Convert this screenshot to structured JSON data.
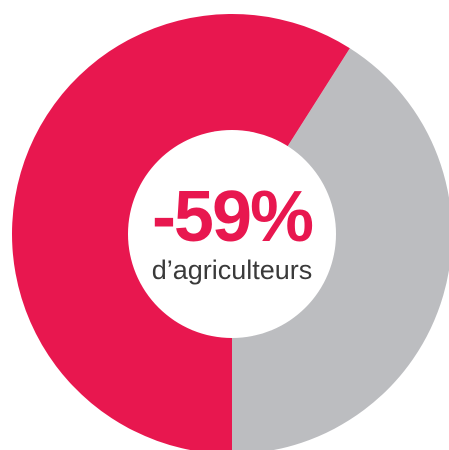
{
  "chart_data": {
    "type": "donut",
    "values": [
      59,
      41
    ],
    "colors": [
      "#e8174f",
      "#bcbdc0"
    ],
    "center_text": "-59%",
    "center_subtext": "d’agriculteurs"
  }
}
